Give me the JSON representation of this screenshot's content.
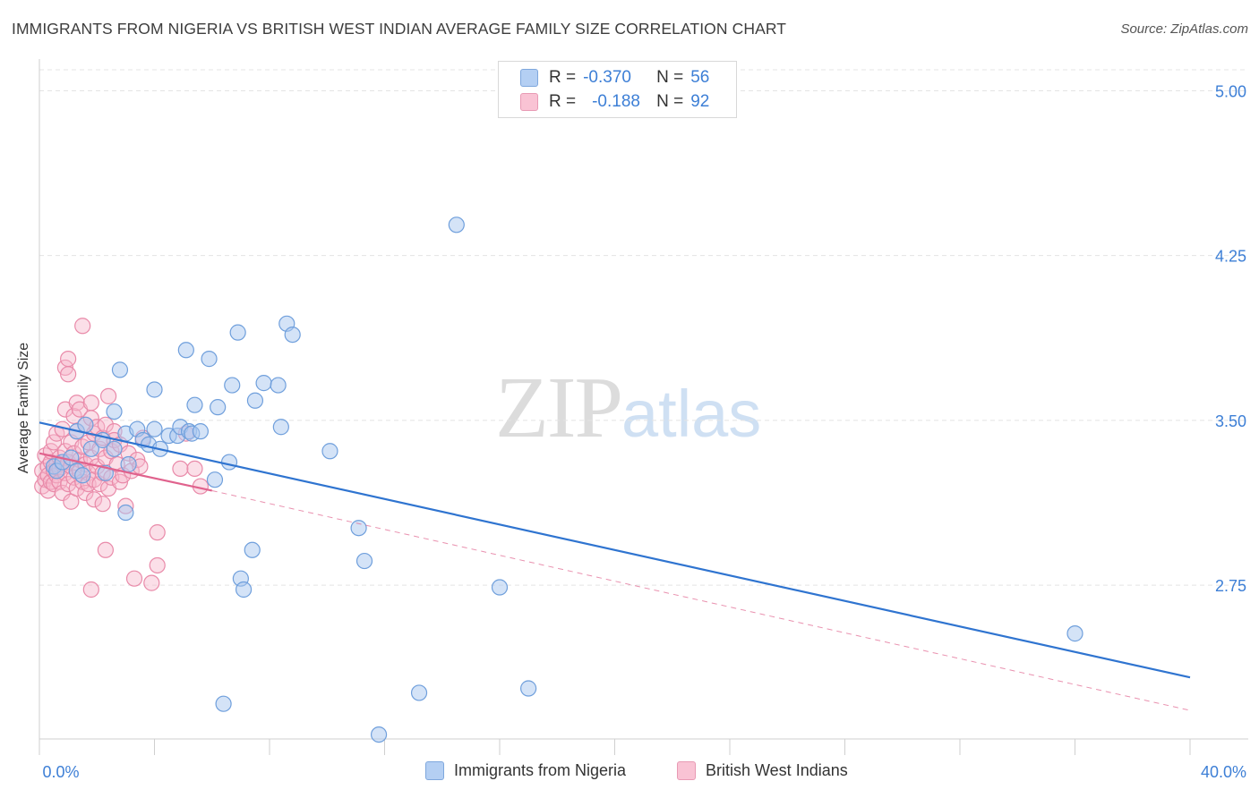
{
  "header": {
    "title": "IMMIGRANTS FROM NIGERIA VS BRITISH WEST INDIAN AVERAGE FAMILY SIZE CORRELATION CHART",
    "source": "Source: ZipAtlas.com"
  },
  "watermark": {
    "zip": "ZIP",
    "atlas": "atlas"
  },
  "legend": {
    "rows": [
      {
        "r_label": "R =",
        "r_value": "-0.370",
        "n_label": "N =",
        "n_value": "56"
      },
      {
        "r_label": "R =",
        "r_value": "-0.188",
        "n_label": "N =",
        "n_value": "92"
      }
    ]
  },
  "colors": {
    "blue_fill": "#a9c8f0",
    "blue_stroke": "#6f9fdc",
    "blue_line": "#2f74d0",
    "pink_fill": "#f7b8cc",
    "pink_stroke": "#e98aa9",
    "pink_line": "#e0628d",
    "grid": "#e4e4e4",
    "tick_text": "#3d7fd6"
  },
  "chart_data": {
    "type": "scatter",
    "title": "IMMIGRANTS FROM NIGERIA VS BRITISH WEST INDIAN AVERAGE FAMILY SIZE CORRELATION CHART",
    "xlabel": "",
    "ylabel": "Average Family Size",
    "xlim": [
      0,
      40
    ],
    "ylim": [
      2.05,
      5.12
    ],
    "x_tick_labels": [
      "0.0%",
      "40.0%"
    ],
    "y_ticks": [
      2.75,
      3.5,
      4.25,
      5.0
    ],
    "y_tick_labels": [
      "2.75",
      "3.50",
      "4.25",
      "5.00"
    ],
    "grid": true,
    "legend_position": "top-center",
    "series": [
      {
        "name": "Immigrants from Nigeria",
        "color": "#a9c8f0",
        "r": -0.37,
        "n": 56,
        "trend": {
          "x": [
            0,
            40
          ],
          "y": [
            3.49,
            2.33
          ]
        },
        "points": [
          [
            0.5,
            3.29
          ],
          [
            0.6,
            3.27
          ],
          [
            0.8,
            3.31
          ],
          [
            1.1,
            3.33
          ],
          [
            1.3,
            3.27
          ],
          [
            1.5,
            3.25
          ],
          [
            1.3,
            3.45
          ],
          [
            1.6,
            3.48
          ],
          [
            1.8,
            3.37
          ],
          [
            2.2,
            3.41
          ],
          [
            2.3,
            3.26
          ],
          [
            2.6,
            3.54
          ],
          [
            2.6,
            3.37
          ],
          [
            2.8,
            3.73
          ],
          [
            3.0,
            3.44
          ],
          [
            3.1,
            3.3
          ],
          [
            3.4,
            3.46
          ],
          [
            3.6,
            3.41
          ],
          [
            3.8,
            3.39
          ],
          [
            4.0,
            3.64
          ],
          [
            4.0,
            3.46
          ],
          [
            4.2,
            3.37
          ],
          [
            4.5,
            3.43
          ],
          [
            4.8,
            3.43
          ],
          [
            4.9,
            3.47
          ],
          [
            5.1,
            3.82
          ],
          [
            5.2,
            3.45
          ],
          [
            5.3,
            3.44
          ],
          [
            5.4,
            3.57
          ],
          [
            5.6,
            3.45
          ],
          [
            5.9,
            3.78
          ],
          [
            6.1,
            3.23
          ],
          [
            6.2,
            3.56
          ],
          [
            6.4,
            2.21
          ],
          [
            6.6,
            3.31
          ],
          [
            6.7,
            3.66
          ],
          [
            6.9,
            3.9
          ],
          [
            7.0,
            2.78
          ],
          [
            7.1,
            2.73
          ],
          [
            7.4,
            2.91
          ],
          [
            7.5,
            3.59
          ],
          [
            7.8,
            3.67
          ],
          [
            8.3,
            3.66
          ],
          [
            8.4,
            3.47
          ],
          [
            8.6,
            3.94
          ],
          [
            8.8,
            3.89
          ],
          [
            10.1,
            3.36
          ],
          [
            11.1,
            3.01
          ],
          [
            11.3,
            2.86
          ],
          [
            11.8,
            2.07
          ],
          [
            13.2,
            2.26
          ],
          [
            14.5,
            4.39
          ],
          [
            16.0,
            2.74
          ],
          [
            17.0,
            2.28
          ],
          [
            36.0,
            2.53
          ],
          [
            3.0,
            3.08
          ]
        ]
      },
      {
        "name": "British West Indians",
        "color": "#f7b8cc",
        "r": -0.188,
        "n": 92,
        "trend": {
          "x": [
            0,
            6.0
          ],
          "y": [
            3.35,
            3.18
          ]
        },
        "trend_extended": {
          "x": [
            6.0,
            40
          ],
          "y": [
            3.18,
            2.18
          ]
        },
        "points": [
          [
            0.1,
            3.27
          ],
          [
            0.1,
            3.2
          ],
          [
            0.2,
            3.34
          ],
          [
            0.2,
            3.23
          ],
          [
            0.3,
            3.29
          ],
          [
            0.3,
            3.25
          ],
          [
            0.3,
            3.18
          ],
          [
            0.4,
            3.31
          ],
          [
            0.4,
            3.22
          ],
          [
            0.4,
            3.36
          ],
          [
            0.5,
            3.27
          ],
          [
            0.5,
            3.21
          ],
          [
            0.5,
            3.4
          ],
          [
            0.6,
            3.3
          ],
          [
            0.6,
            3.25
          ],
          [
            0.6,
            3.44
          ],
          [
            0.7,
            3.33
          ],
          [
            0.7,
            3.28
          ],
          [
            0.7,
            3.22
          ],
          [
            0.8,
            3.46
          ],
          [
            0.8,
            3.3
          ],
          [
            0.8,
            3.17
          ],
          [
            0.9,
            3.36
          ],
          [
            0.9,
            3.26
          ],
          [
            0.9,
            3.55
          ],
          [
            0.9,
            3.74
          ],
          [
            1.0,
            3.31
          ],
          [
            1.0,
            3.21
          ],
          [
            1.0,
            3.71
          ],
          [
            1.0,
            3.78
          ],
          [
            1.1,
            3.4
          ],
          [
            1.1,
            3.29
          ],
          [
            1.1,
            3.13
          ],
          [
            1.2,
            3.52
          ],
          [
            1.2,
            3.35
          ],
          [
            1.2,
            3.24
          ],
          [
            1.3,
            3.45
          ],
          [
            1.3,
            3.19
          ],
          [
            1.3,
            3.58
          ],
          [
            1.4,
            3.32
          ],
          [
            1.4,
            3.27
          ],
          [
            1.4,
            3.55
          ],
          [
            1.5,
            3.22
          ],
          [
            1.5,
            3.38
          ],
          [
            1.5,
            3.93
          ],
          [
            1.6,
            3.3
          ],
          [
            1.6,
            3.17
          ],
          [
            1.6,
            3.48
          ],
          [
            1.7,
            3.26
          ],
          [
            1.7,
            3.4
          ],
          [
            1.7,
            3.21
          ],
          [
            1.8,
            3.58
          ],
          [
            1.8,
            3.51
          ],
          [
            1.8,
            3.33
          ],
          [
            1.9,
            3.23
          ],
          [
            1.9,
            3.14
          ],
          [
            1.9,
            3.44
          ],
          [
            2.0,
            3.47
          ],
          [
            2.0,
            3.29
          ],
          [
            2.1,
            3.37
          ],
          [
            2.1,
            3.21
          ],
          [
            2.2,
            3.42
          ],
          [
            2.2,
            3.26
          ],
          [
            2.2,
            3.12
          ],
          [
            2.3,
            3.33
          ],
          [
            2.3,
            3.48
          ],
          [
            2.3,
            2.91
          ],
          [
            2.4,
            3.61
          ],
          [
            2.4,
            3.19
          ],
          [
            2.5,
            3.36
          ],
          [
            2.5,
            3.24
          ],
          [
            2.6,
            3.45
          ],
          [
            2.6,
            3.41
          ],
          [
            2.7,
            3.3
          ],
          [
            2.8,
            3.22
          ],
          [
            2.8,
            3.39
          ],
          [
            2.9,
            3.25
          ],
          [
            3.0,
            3.11
          ],
          [
            3.1,
            3.35
          ],
          [
            3.2,
            3.27
          ],
          [
            3.3,
            2.78
          ],
          [
            3.4,
            3.32
          ],
          [
            3.5,
            3.29
          ],
          [
            3.6,
            3.42
          ],
          [
            3.9,
            2.76
          ],
          [
            4.1,
            2.99
          ],
          [
            4.1,
            2.84
          ],
          [
            4.9,
            3.28
          ],
          [
            5.1,
            3.44
          ],
          [
            5.4,
            3.28
          ],
          [
            5.6,
            3.2
          ],
          [
            1.8,
            2.73
          ]
        ]
      }
    ]
  },
  "axes": {
    "y_title": "Average Family Size",
    "x_min_label": "0.0%",
    "x_max_label": "40.0%"
  },
  "bottom_legend": {
    "series1": "Immigrants from Nigeria",
    "series2": "British West Indians"
  }
}
